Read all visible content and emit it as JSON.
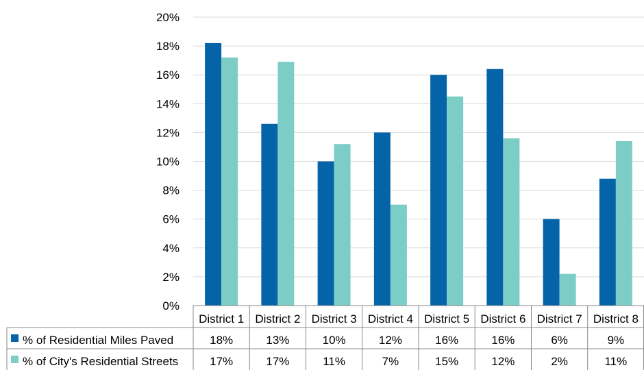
{
  "chart_data": {
    "type": "bar",
    "categories": [
      "District 1",
      "District 2",
      "District 3",
      "District 4",
      "District 5",
      "District 6",
      "District 7",
      "District 8"
    ],
    "series": [
      {
        "name": "% of Residential Miles Paved",
        "values": [
          18.2,
          12.6,
          10.0,
          12.0,
          16.0,
          16.4,
          6.0,
          8.8
        ],
        "labels": [
          "18%",
          "13%",
          "10%",
          "12%",
          "16%",
          "16%",
          "6%",
          "9%"
        ],
        "color": "#0563a8"
      },
      {
        "name": "% of City's Residential Streets",
        "values": [
          17.2,
          16.9,
          11.2,
          7.0,
          14.5,
          11.6,
          2.2,
          11.4
        ],
        "labels": [
          "17%",
          "17%",
          "11%",
          "7%",
          "15%",
          "12%",
          "2%",
          "11%"
        ],
        "color": "#7dcdc7"
      }
    ],
    "y_ticks": [
      "0%",
      "2%",
      "4%",
      "6%",
      "8%",
      "10%",
      "12%",
      "14%",
      "16%",
      "18%",
      "20%"
    ],
    "ylim": [
      0,
      20
    ],
    "grid": true,
    "legend": "data-table-left",
    "gridline_color": "#d9d9d9",
    "axis_color": "#888888"
  }
}
